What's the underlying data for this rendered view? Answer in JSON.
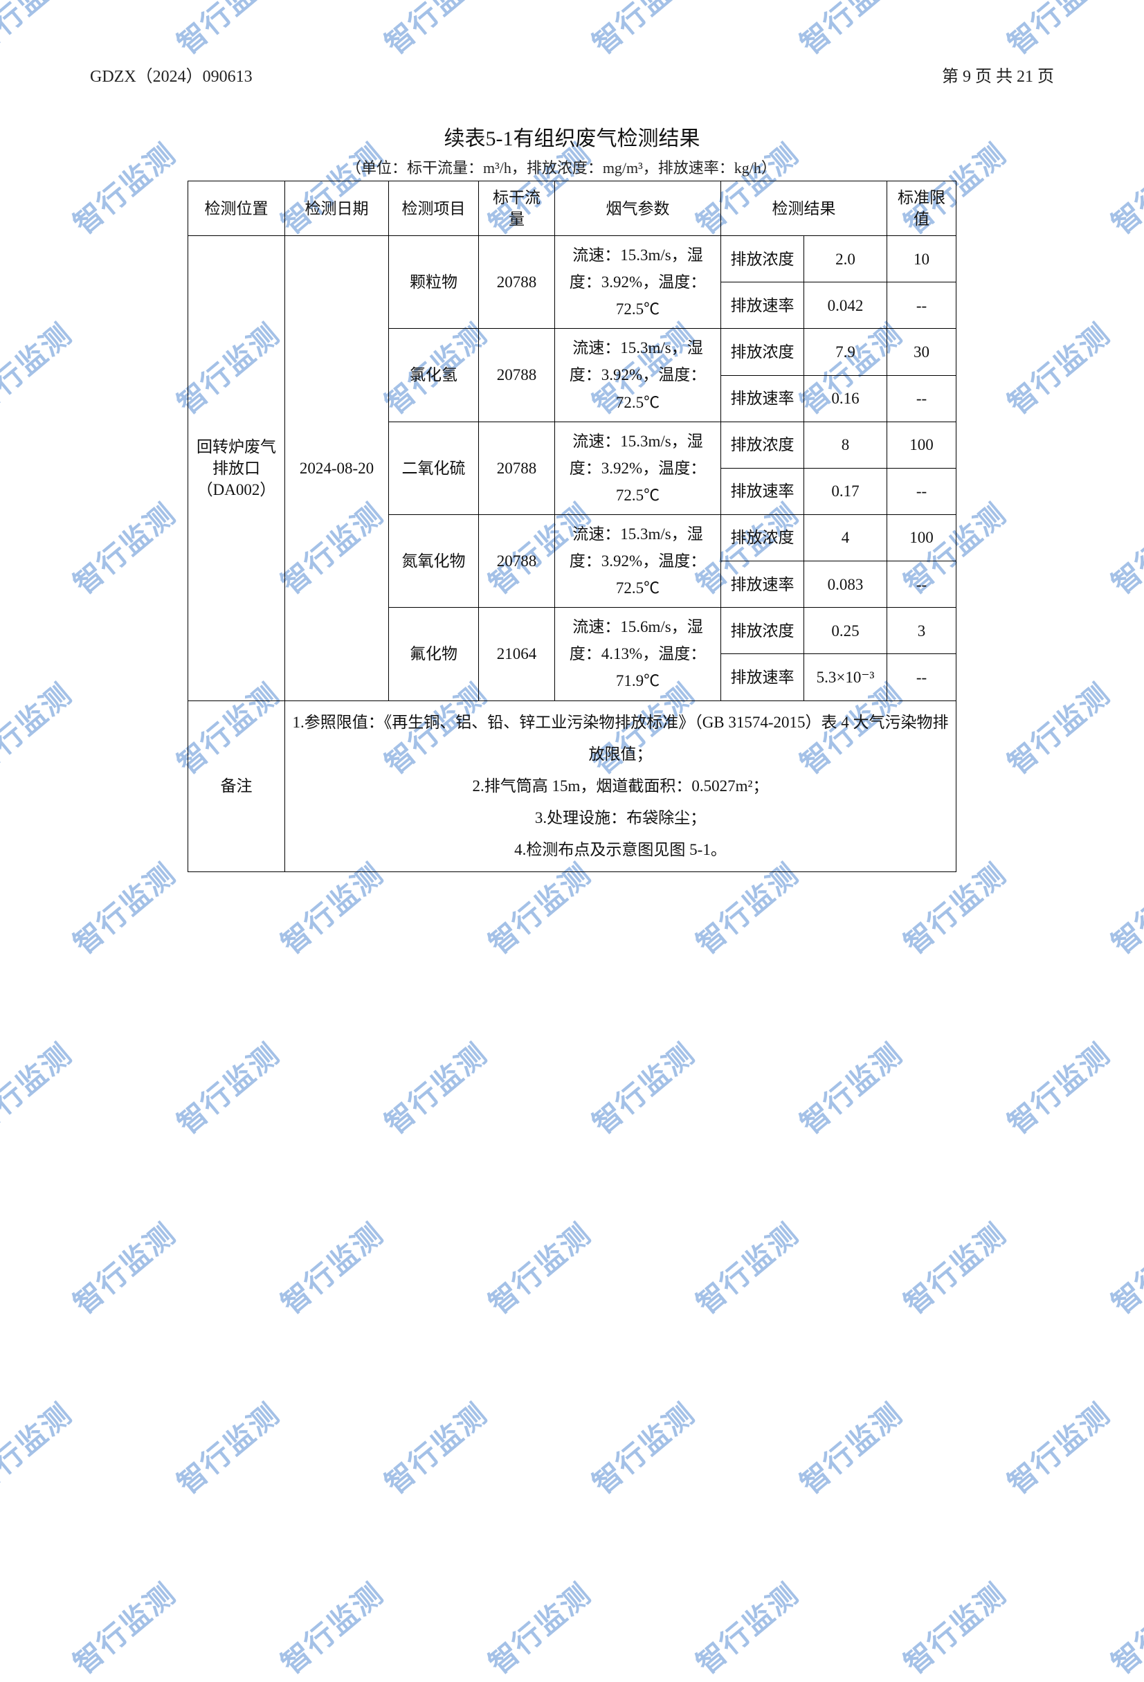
{
  "header": {
    "doc_number": "GDZX（2024）090613",
    "page_info": "第 9 页 共 21 页"
  },
  "table": {
    "title": "续表5-1有组织废气检测结果",
    "units": "（单位：标干流量：m³/h，排放浓度：mg/m³，排放速率：kg/h）",
    "columns": {
      "c1": "检测位置",
      "c2": "检测日期",
      "c3": "检测项目",
      "c4": "标干流量",
      "c5": "烟气参数",
      "c6": "检测结果",
      "c7": "标准限值"
    },
    "location": "回转炉废气排放口（DA002）",
    "date": "2024-08-20",
    "items": [
      {
        "name": "颗粒物",
        "flow": "20788",
        "param": "流速：15.3m/s，湿度：3.92%，温度：72.5℃",
        "conc_label": "排放浓度",
        "conc_val": "2.0",
        "conc_limit": "10",
        "rate_label": "排放速率",
        "rate_val": "0.042",
        "rate_limit": "--"
      },
      {
        "name": "氯化氢",
        "flow": "20788",
        "param": "流速：15.3m/s，湿度：3.92%，温度：72.5℃",
        "conc_label": "排放浓度",
        "conc_val": "7.9",
        "conc_limit": "30",
        "rate_label": "排放速率",
        "rate_val": "0.16",
        "rate_limit": "--"
      },
      {
        "name": "二氧化硫",
        "flow": "20788",
        "param": "流速：15.3m/s，湿度：3.92%，温度：72.5℃",
        "conc_label": "排放浓度",
        "conc_val": "8",
        "conc_limit": "100",
        "rate_label": "排放速率",
        "rate_val": "0.17",
        "rate_limit": "--"
      },
      {
        "name": "氮氧化物",
        "flow": "20788",
        "param": "流速：15.3m/s，湿度：3.92%，温度：72.5℃",
        "conc_label": "排放浓度",
        "conc_val": "4",
        "conc_limit": "100",
        "rate_label": "排放速率",
        "rate_val": "0.083",
        "rate_limit": "--"
      },
      {
        "name": "氟化物",
        "flow": "21064",
        "param": "流速：15.6m/s，湿度：4.13%，温度：71.9℃",
        "conc_label": "排放浓度",
        "conc_val": "0.25",
        "conc_limit": "3",
        "rate_label": "排放速率",
        "rate_val": "5.3×10⁻³",
        "rate_limit": "--"
      }
    ],
    "notes_label": "备注",
    "notes": [
      "1.参照限值：《再生铜、铝、铅、锌工业污染物排放标准》（GB 31574-2015）表 4 大气污染物排放限值；",
      "2.排气筒高 15m，烟道截面积：0.5027m²；",
      "3.处理设施：布袋除尘；",
      "4.检测布点及示意图见图 5-1。"
    ]
  },
  "watermark": {
    "text": "智行监测",
    "color": "#5b8fd4"
  }
}
